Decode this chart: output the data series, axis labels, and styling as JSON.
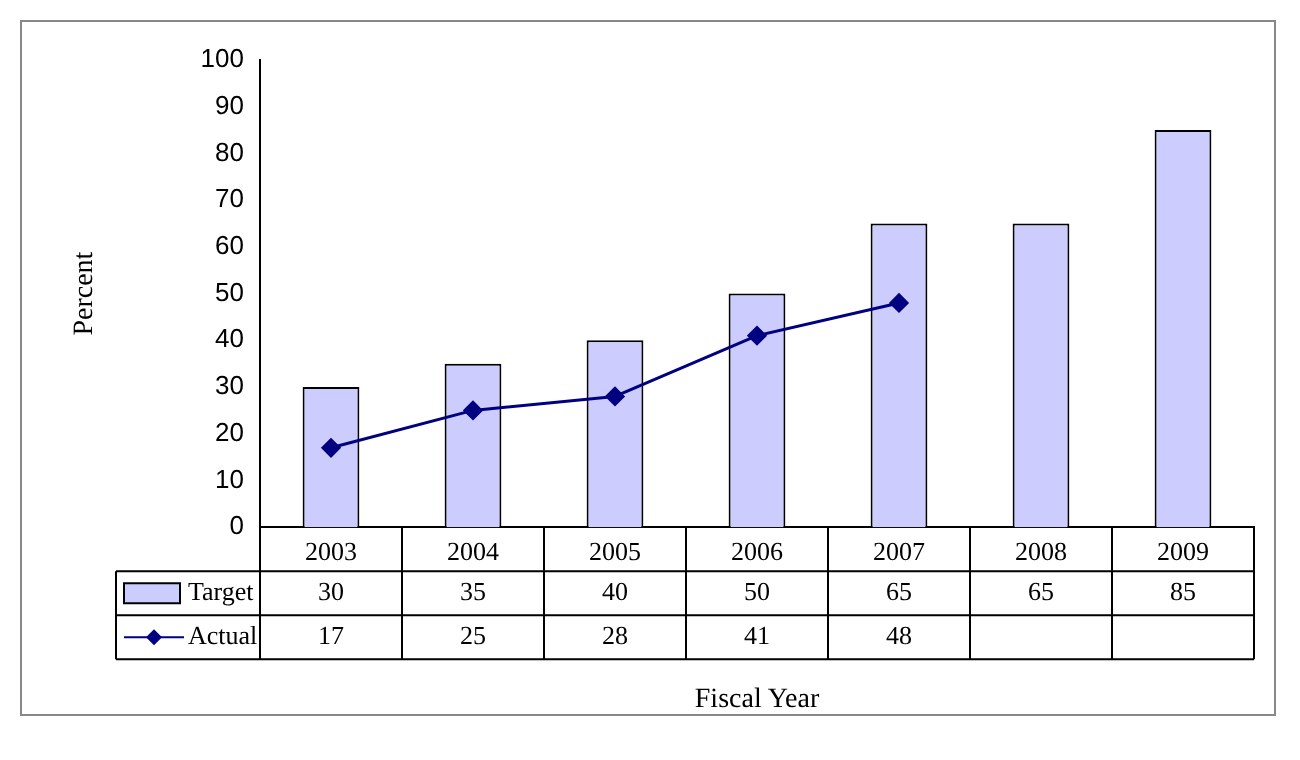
{
  "chart_data": {
    "type": "bar",
    "xlabel": "Fiscal Year",
    "ylabel": "Percent",
    "categories": [
      "2003",
      "2004",
      "2005",
      "2006",
      "2007",
      "2008",
      "2009"
    ],
    "series": [
      {
        "name": "Target",
        "color": "#ccccff",
        "values": [
          30,
          35,
          40,
          50,
          65,
          65,
          85
        ]
      },
      {
        "name": "Actual",
        "type": "line",
        "color": "#000080",
        "marker": "diamond",
        "values": [
          17,
          25,
          28,
          41,
          48,
          null,
          null
        ]
      }
    ],
    "ylim": [
      0,
      100
    ],
    "yticks": [
      0,
      10,
      20,
      30,
      40,
      50,
      60,
      70,
      80,
      90,
      100
    ],
    "grid": false,
    "legend": "bottom",
    "data_labels": true
  }
}
